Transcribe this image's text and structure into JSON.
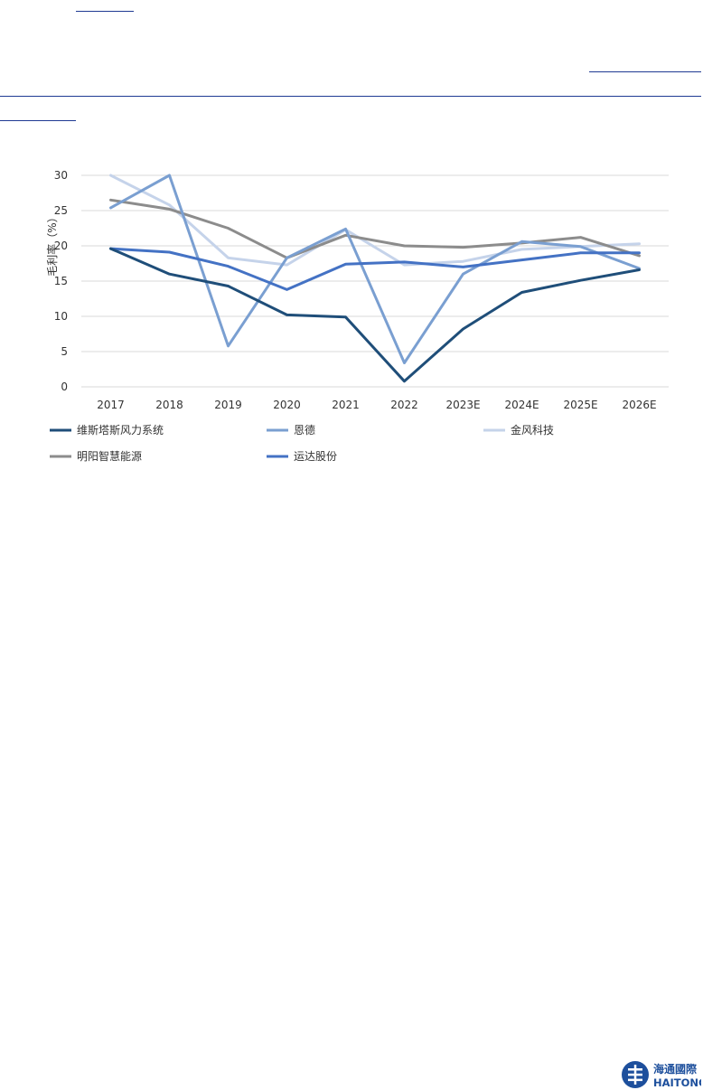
{
  "chart_data": {
    "type": "line",
    "ylabel": "毛利率（%）",
    "ylim": [
      0,
      30
    ],
    "yticks": [
      0,
      5,
      10,
      15,
      20,
      25,
      30
    ],
    "categories": [
      "2017",
      "2018",
      "2019",
      "2020",
      "2021",
      "2022",
      "2023E",
      "2024E",
      "2025E",
      "2026E"
    ],
    "grid": true,
    "legend_position": "bottom",
    "series": [
      {
        "name": "维斯塔斯风力系统",
        "color": "#1f4e79",
        "values": [
          19.6,
          16.0,
          14.3,
          10.2,
          9.9,
          0.8,
          8.2,
          13.4,
          15.1,
          16.6
        ]
      },
      {
        "name": "恩德",
        "color": "#7a9fd1",
        "values": [
          25.4,
          30.0,
          5.8,
          18.3,
          22.4,
          3.4,
          16.0,
          20.6,
          19.9,
          16.8
        ]
      },
      {
        "name": "金风科技",
        "color": "#c5d3ea",
        "values": [
          30.0,
          25.8,
          18.3,
          17.3,
          22.3,
          17.3,
          17.8,
          19.5,
          19.9,
          20.3
        ]
      },
      {
        "name": "明阳智慧能源",
        "color": "#8c8c8c",
        "values": [
          26.5,
          25.2,
          22.5,
          18.3,
          21.5,
          20.0,
          19.8,
          20.4,
          21.2,
          18.6
        ]
      },
      {
        "name": "运达股份",
        "color": "#4472c4",
        "values": [
          19.6,
          19.1,
          17.1,
          13.8,
          17.4,
          17.7,
          17.0,
          18.0,
          19.0,
          19.0
        ]
      }
    ]
  },
  "footer": {
    "logo_cn": "海通國際",
    "logo_en": "HAITONG"
  }
}
